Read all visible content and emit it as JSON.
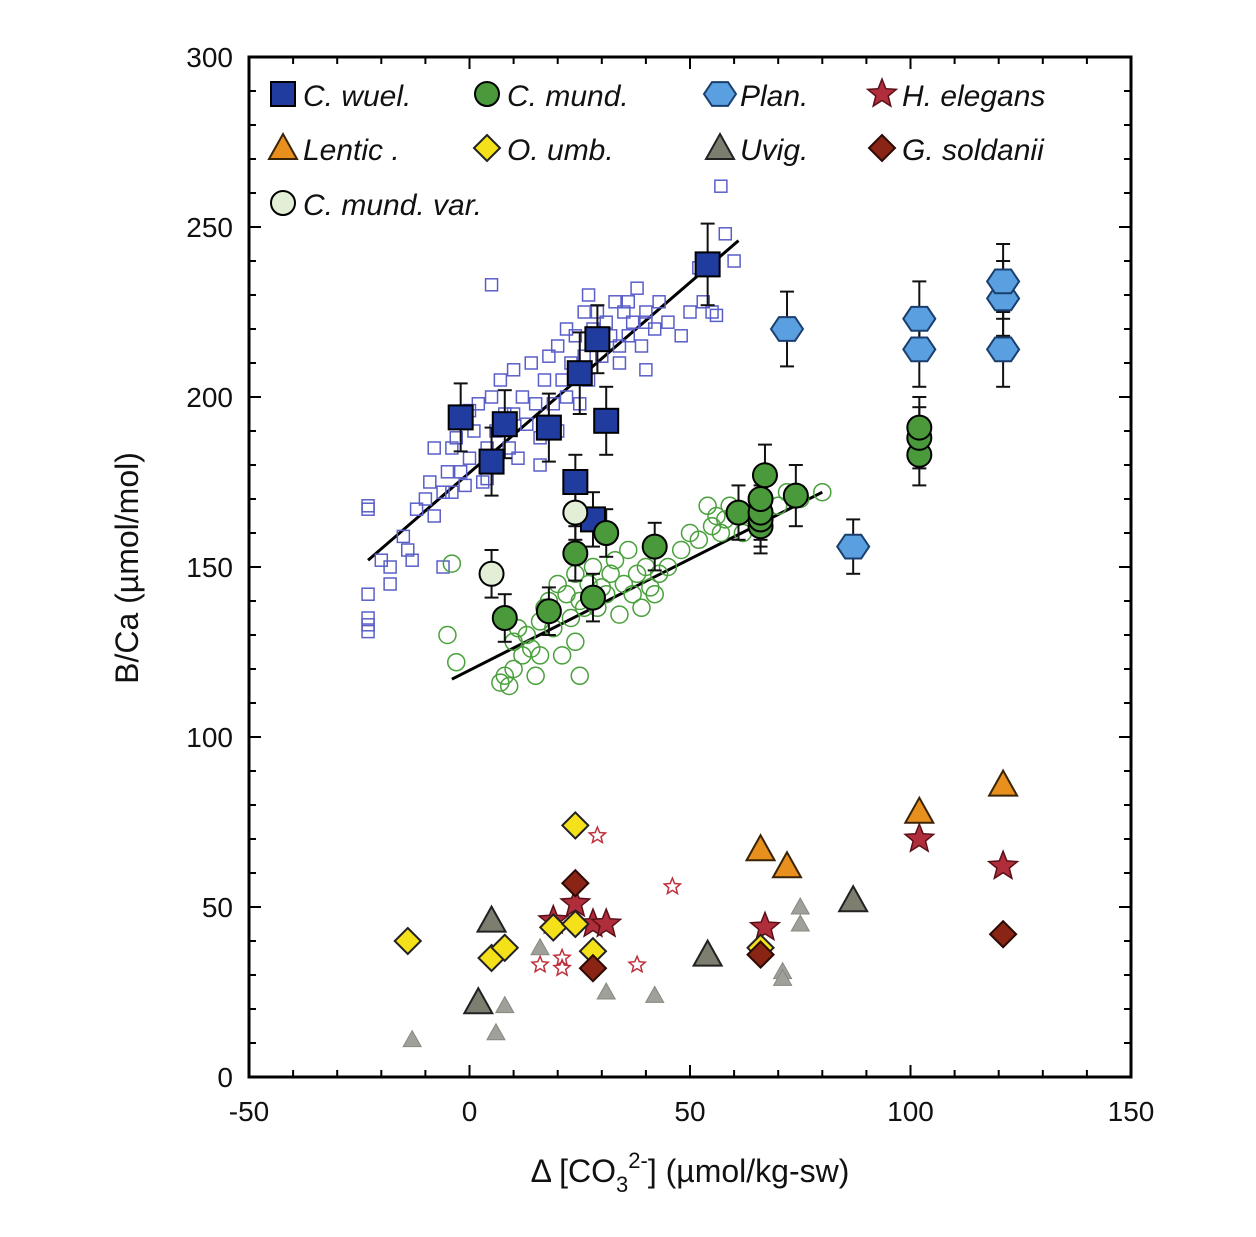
{
  "chart_data": {
    "type": "scatter",
    "xlabel_parts": {
      "prefix": "Δ [CO",
      "sub": "3",
      "sup": "2-",
      "suffix": "] (µmol/kg-sw)"
    },
    "ylabel": "B/Ca (µmol/mol)",
    "xlim": [
      -50,
      150
    ],
    "ylim": [
      0,
      300
    ],
    "xticks": [
      -50,
      0,
      50,
      100,
      150
    ],
    "yticks": [
      0,
      50,
      100,
      150,
      200,
      250,
      300
    ],
    "grid": false,
    "legend_position": "top",
    "series": [
      {
        "name": "C. wuel.",
        "marker": "square",
        "fill": "#1f3c9e",
        "stroke": "#000000",
        "points": [
          {
            "x": -2,
            "y": 194,
            "err": 10
          },
          {
            "x": 5,
            "y": 181,
            "err": 10
          },
          {
            "x": 8,
            "y": 192,
            "err": 10
          },
          {
            "x": 18,
            "y": 191,
            "err": 10
          },
          {
            "x": 24,
            "y": 175,
            "err": 8
          },
          {
            "x": 25,
            "y": 207,
            "err": 12
          },
          {
            "x": 29,
            "y": 217,
            "err": 10
          },
          {
            "x": 31,
            "y": 193,
            "err": 10
          },
          {
            "x": 28,
            "y": 164,
            "err": 8
          },
          {
            "x": 54,
            "y": 239,
            "err": 12
          }
        ]
      },
      {
        "name": "C. mund.",
        "marker": "circle",
        "fill": "#4a9a3c",
        "stroke": "#000000",
        "points": [
          {
            "x": 8,
            "y": 135,
            "err": 7
          },
          {
            "x": 18,
            "y": 137,
            "err": 7
          },
          {
            "x": 24,
            "y": 154,
            "err": 8
          },
          {
            "x": 28,
            "y": 141,
            "err": 7
          },
          {
            "x": 31,
            "y": 160,
            "err": 7
          },
          {
            "x": 42,
            "y": 156,
            "err": 7
          },
          {
            "x": 61,
            "y": 166,
            "err": 8
          },
          {
            "x": 66,
            "y": 162,
            "err": 8
          },
          {
            "x": 66,
            "y": 164,
            "err": 8
          },
          {
            "x": 66,
            "y": 166,
            "err": 8
          },
          {
            "x": 66,
            "y": 170,
            "err": 8
          },
          {
            "x": 67,
            "y": 177,
            "err": 9
          },
          {
            "x": 74,
            "y": 171,
            "err": 9
          },
          {
            "x": 102,
            "y": 183,
            "err": 9
          },
          {
            "x": 102,
            "y": 188,
            "err": 9
          },
          {
            "x": 102,
            "y": 191,
            "err": 9
          }
        ]
      },
      {
        "name": "Plan.",
        "marker": "hexagon",
        "fill": "#5a9fe0",
        "stroke": "#1a3e6e",
        "points": [
          {
            "x": 72,
            "y": 220,
            "err": 11
          },
          {
            "x": 87,
            "y": 156,
            "err": 8
          },
          {
            "x": 102,
            "y": 214,
            "err": 11
          },
          {
            "x": 102,
            "y": 223,
            "err": 11
          },
          {
            "x": 121,
            "y": 214,
            "err": 11
          },
          {
            "x": 121,
            "y": 229,
            "err": 11
          },
          {
            "x": 121,
            "y": 234,
            "err": 11
          }
        ]
      },
      {
        "name": "H. elegans",
        "marker": "star",
        "fill": "#b02e3c",
        "stroke": "#5a1018",
        "points": [
          {
            "x": 19,
            "y": 46
          },
          {
            "x": 24,
            "y": 51
          },
          {
            "x": 28,
            "y": 45
          },
          {
            "x": 31,
            "y": 45
          },
          {
            "x": 67,
            "y": 44
          },
          {
            "x": 102,
            "y": 70
          },
          {
            "x": 121,
            "y": 62
          }
        ]
      },
      {
        "name": "Lentic",
        "marker": "triangle",
        "fill": "#e8901e",
        "stroke": "#3a2406",
        "points": [
          {
            "x": 66,
            "y": 67
          },
          {
            "x": 72,
            "y": 62
          },
          {
            "x": 102,
            "y": 78
          },
          {
            "x": 121,
            "y": 86
          }
        ]
      },
      {
        "name": "O. umb.",
        "marker": "diamond",
        "fill": "#f5e11a",
        "stroke": "#222222",
        "points": [
          {
            "x": -14,
            "y": 40
          },
          {
            "x": 5,
            "y": 35
          },
          {
            "x": 8,
            "y": 38
          },
          {
            "x": 19,
            "y": 44
          },
          {
            "x": 24,
            "y": 74
          },
          {
            "x": 24,
            "y": 45
          },
          {
            "x": 28,
            "y": 37
          },
          {
            "x": 66,
            "y": 38
          }
        ]
      },
      {
        "name": "Uvig.",
        "marker": "triangle",
        "fill": "#7d7d70",
        "stroke": "#222222",
        "points": [
          {
            "x": 5,
            "y": 46
          },
          {
            "x": 87,
            "y": 52
          },
          {
            "x": 2,
            "y": 22
          },
          {
            "x": 54,
            "y": 36
          }
        ]
      },
      {
        "name": "G. soldanii",
        "marker": "diamond",
        "fill": "#8a2414",
        "stroke": "#2a0a04",
        "points": [
          {
            "x": 24,
            "y": 57
          },
          {
            "x": 28,
            "y": 32
          },
          {
            "x": 66,
            "y": 36
          },
          {
            "x": 121,
            "y": 42
          }
        ]
      },
      {
        "name": "C. mund. var.",
        "marker": "circle",
        "fill": "#e2efd6",
        "stroke": "#000000",
        "points": [
          {
            "x": 5,
            "y": 148,
            "err": 7
          },
          {
            "x": 24,
            "y": 166,
            "err": 8
          }
        ]
      }
    ],
    "background_series": [
      {
        "name": "",
        "marker": "open-square",
        "stroke": "#5a5fc8",
        "points": [
          {
            "x": -23,
            "y": 168
          },
          {
            "x": -23,
            "y": 167
          },
          {
            "x": -23,
            "y": 142
          },
          {
            "x": -23,
            "y": 135
          },
          {
            "x": -23,
            "y": 133
          },
          {
            "x": -23,
            "y": 131
          },
          {
            "x": -20,
            "y": 152
          },
          {
            "x": -18,
            "y": 145
          },
          {
            "x": -18,
            "y": 150
          },
          {
            "x": -15,
            "y": 159
          },
          {
            "x": -14,
            "y": 155
          },
          {
            "x": -13,
            "y": 152
          },
          {
            "x": -12,
            "y": 167
          },
          {
            "x": -10,
            "y": 170
          },
          {
            "x": -9,
            "y": 175
          },
          {
            "x": -8,
            "y": 165
          },
          {
            "x": -8,
            "y": 185
          },
          {
            "x": -6,
            "y": 172
          },
          {
            "x": -6,
            "y": 150
          },
          {
            "x": -5,
            "y": 178
          },
          {
            "x": -4,
            "y": 185
          },
          {
            "x": -4,
            "y": 172
          },
          {
            "x": -3,
            "y": 188
          },
          {
            "x": -2,
            "y": 178
          },
          {
            "x": -1,
            "y": 174
          },
          {
            "x": 0,
            "y": 196
          },
          {
            "x": 0,
            "y": 182
          },
          {
            "x": 1,
            "y": 190
          },
          {
            "x": 2,
            "y": 198
          },
          {
            "x": 3,
            "y": 175
          },
          {
            "x": 4,
            "y": 185
          },
          {
            "x": 4,
            "y": 176
          },
          {
            "x": 5,
            "y": 200
          },
          {
            "x": 6,
            "y": 190
          },
          {
            "x": 6,
            "y": 180
          },
          {
            "x": 7,
            "y": 205
          },
          {
            "x": 8,
            "y": 195
          },
          {
            "x": 9,
            "y": 185
          },
          {
            "x": 10,
            "y": 208
          },
          {
            "x": 10,
            "y": 195
          },
          {
            "x": 11,
            "y": 182
          },
          {
            "x": 12,
            "y": 200
          },
          {
            "x": 13,
            "y": 192
          },
          {
            "x": 14,
            "y": 210
          },
          {
            "x": 15,
            "y": 198
          },
          {
            "x": 16,
            "y": 188
          },
          {
            "x": 16,
            "y": 180
          },
          {
            "x": 17,
            "y": 205
          },
          {
            "x": 18,
            "y": 212
          },
          {
            "x": 19,
            "y": 198
          },
          {
            "x": 20,
            "y": 215
          },
          {
            "x": 20,
            "y": 190
          },
          {
            "x": 21,
            "y": 205
          },
          {
            "x": 22,
            "y": 220
          },
          {
            "x": 22,
            "y": 200
          },
          {
            "x": 23,
            "y": 210
          },
          {
            "x": 24,
            "y": 218
          },
          {
            "x": 25,
            "y": 198
          },
          {
            "x": 26,
            "y": 225
          },
          {
            "x": 26,
            "y": 212
          },
          {
            "x": 27,
            "y": 230
          },
          {
            "x": 27,
            "y": 205
          },
          {
            "x": 28,
            "y": 220
          },
          {
            "x": 29,
            "y": 225
          },
          {
            "x": 30,
            "y": 212
          },
          {
            "x": 31,
            "y": 222
          },
          {
            "x": 32,
            "y": 218
          },
          {
            "x": 33,
            "y": 228
          },
          {
            "x": 34,
            "y": 210
          },
          {
            "x": 34,
            "y": 215
          },
          {
            "x": 35,
            "y": 225
          },
          {
            "x": 36,
            "y": 218
          },
          {
            "x": 36,
            "y": 228
          },
          {
            "x": 37,
            "y": 222
          },
          {
            "x": 38,
            "y": 232
          },
          {
            "x": 39,
            "y": 215
          },
          {
            "x": 40,
            "y": 225
          },
          {
            "x": 40,
            "y": 208
          },
          {
            "x": 42,
            "y": 220
          },
          {
            "x": 43,
            "y": 228
          },
          {
            "x": 45,
            "y": 222
          },
          {
            "x": 48,
            "y": 218
          },
          {
            "x": 5,
            "y": 233
          },
          {
            "x": 50,
            "y": 225
          },
          {
            "x": 52,
            "y": 238
          },
          {
            "x": 53,
            "y": 228
          },
          {
            "x": 55,
            "y": 225
          },
          {
            "x": 56,
            "y": 224
          },
          {
            "x": 57,
            "y": 262
          },
          {
            "x": 58,
            "y": 248
          },
          {
            "x": 60,
            "y": 240
          },
          {
            "x": 40,
            "y": 222
          }
        ]
      },
      {
        "name": "",
        "marker": "open-circle",
        "stroke": "#4aa03c",
        "points": [
          {
            "x": -5,
            "y": 130
          },
          {
            "x": -4,
            "y": 151
          },
          {
            "x": -3,
            "y": 122
          },
          {
            "x": 7,
            "y": 116
          },
          {
            "x": 8,
            "y": 118
          },
          {
            "x": 9,
            "y": 115
          },
          {
            "x": 10,
            "y": 128
          },
          {
            "x": 10,
            "y": 120
          },
          {
            "x": 11,
            "y": 132
          },
          {
            "x": 12,
            "y": 124
          },
          {
            "x": 13,
            "y": 130
          },
          {
            "x": 14,
            "y": 126
          },
          {
            "x": 15,
            "y": 118
          },
          {
            "x": 16,
            "y": 134
          },
          {
            "x": 16,
            "y": 124
          },
          {
            "x": 17,
            "y": 138
          },
          {
            "x": 18,
            "y": 140
          },
          {
            "x": 19,
            "y": 132
          },
          {
            "x": 20,
            "y": 145
          },
          {
            "x": 21,
            "y": 124
          },
          {
            "x": 22,
            "y": 142
          },
          {
            "x": 23,
            "y": 135
          },
          {
            "x": 24,
            "y": 148
          },
          {
            "x": 24,
            "y": 128
          },
          {
            "x": 25,
            "y": 118
          },
          {
            "x": 25,
            "y": 140
          },
          {
            "x": 26,
            "y": 138
          },
          {
            "x": 27,
            "y": 145
          },
          {
            "x": 28,
            "y": 150
          },
          {
            "x": 29,
            "y": 138
          },
          {
            "x": 30,
            "y": 144
          },
          {
            "x": 31,
            "y": 142
          },
          {
            "x": 32,
            "y": 148
          },
          {
            "x": 33,
            "y": 152
          },
          {
            "x": 34,
            "y": 136
          },
          {
            "x": 35,
            "y": 145
          },
          {
            "x": 36,
            "y": 155
          },
          {
            "x": 37,
            "y": 142
          },
          {
            "x": 38,
            "y": 148
          },
          {
            "x": 39,
            "y": 138
          },
          {
            "x": 40,
            "y": 150
          },
          {
            "x": 41,
            "y": 144
          },
          {
            "x": 42,
            "y": 142
          },
          {
            "x": 43,
            "y": 148
          },
          {
            "x": 45,
            "y": 150
          },
          {
            "x": 48,
            "y": 155
          },
          {
            "x": 50,
            "y": 160
          },
          {
            "x": 52,
            "y": 158
          },
          {
            "x": 54,
            "y": 168
          },
          {
            "x": 55,
            "y": 162
          },
          {
            "x": 56,
            "y": 165
          },
          {
            "x": 57,
            "y": 160
          },
          {
            "x": 58,
            "y": 164
          },
          {
            "x": 59,
            "y": 168
          },
          {
            "x": 62,
            "y": 160
          },
          {
            "x": 64,
            "y": 165
          },
          {
            "x": 70,
            "y": 168
          },
          {
            "x": 72,
            "y": 172
          },
          {
            "x": 75,
            "y": 170
          },
          {
            "x": 80,
            "y": 172
          }
        ]
      },
      {
        "name": "",
        "marker": "open-star",
        "stroke": "#c0303c",
        "points": [
          {
            "x": 16,
            "y": 33
          },
          {
            "x": 21,
            "y": 35
          },
          {
            "x": 21,
            "y": 32
          },
          {
            "x": 29,
            "y": 71
          },
          {
            "x": 38,
            "y": 33
          },
          {
            "x": 46,
            "y": 56
          }
        ]
      },
      {
        "name": "",
        "marker": "small-triangle",
        "fill": "#a0a09a",
        "stroke": "#888880",
        "points": [
          {
            "x": -13,
            "y": 11
          },
          {
            "x": 6,
            "y": 13
          },
          {
            "x": 8,
            "y": 21
          },
          {
            "x": 16,
            "y": 38
          },
          {
            "x": 31,
            "y": 25
          },
          {
            "x": 42,
            "y": 24
          },
          {
            "x": 71,
            "y": 31
          },
          {
            "x": 71,
            "y": 29
          },
          {
            "x": 75,
            "y": 50
          },
          {
            "x": 75,
            "y": 45
          }
        ]
      }
    ],
    "fit_lines": [
      {
        "series": "C. wuel.",
        "x": [
          -23,
          61
        ],
        "y": [
          152,
          246
        ]
      },
      {
        "series": "C. mund.",
        "x": [
          -4,
          80
        ],
        "y": [
          117,
          172
        ]
      }
    ],
    "legend": {
      "rows": [
        [
          {
            "series": "C. wuel.",
            "label": "C. wuel."
          },
          {
            "series": "C. mund.",
            "label": "C. mund."
          },
          {
            "series": "Plan.",
            "label": "Plan."
          },
          {
            "series": "H. elegans",
            "label": "H. elegans"
          }
        ],
        [
          {
            "series": "Lentic",
            "label": "Lentic   ."
          },
          {
            "series": "O. umb.",
            "label": "O. umb."
          },
          {
            "series": "Uvig.",
            "label": "Uvig."
          },
          {
            "series": "G. soldanii",
            "label": "G. soldanii"
          }
        ],
        [
          {
            "series": "C. mund. var.",
            "label": "C. mund. var."
          }
        ]
      ]
    }
  }
}
